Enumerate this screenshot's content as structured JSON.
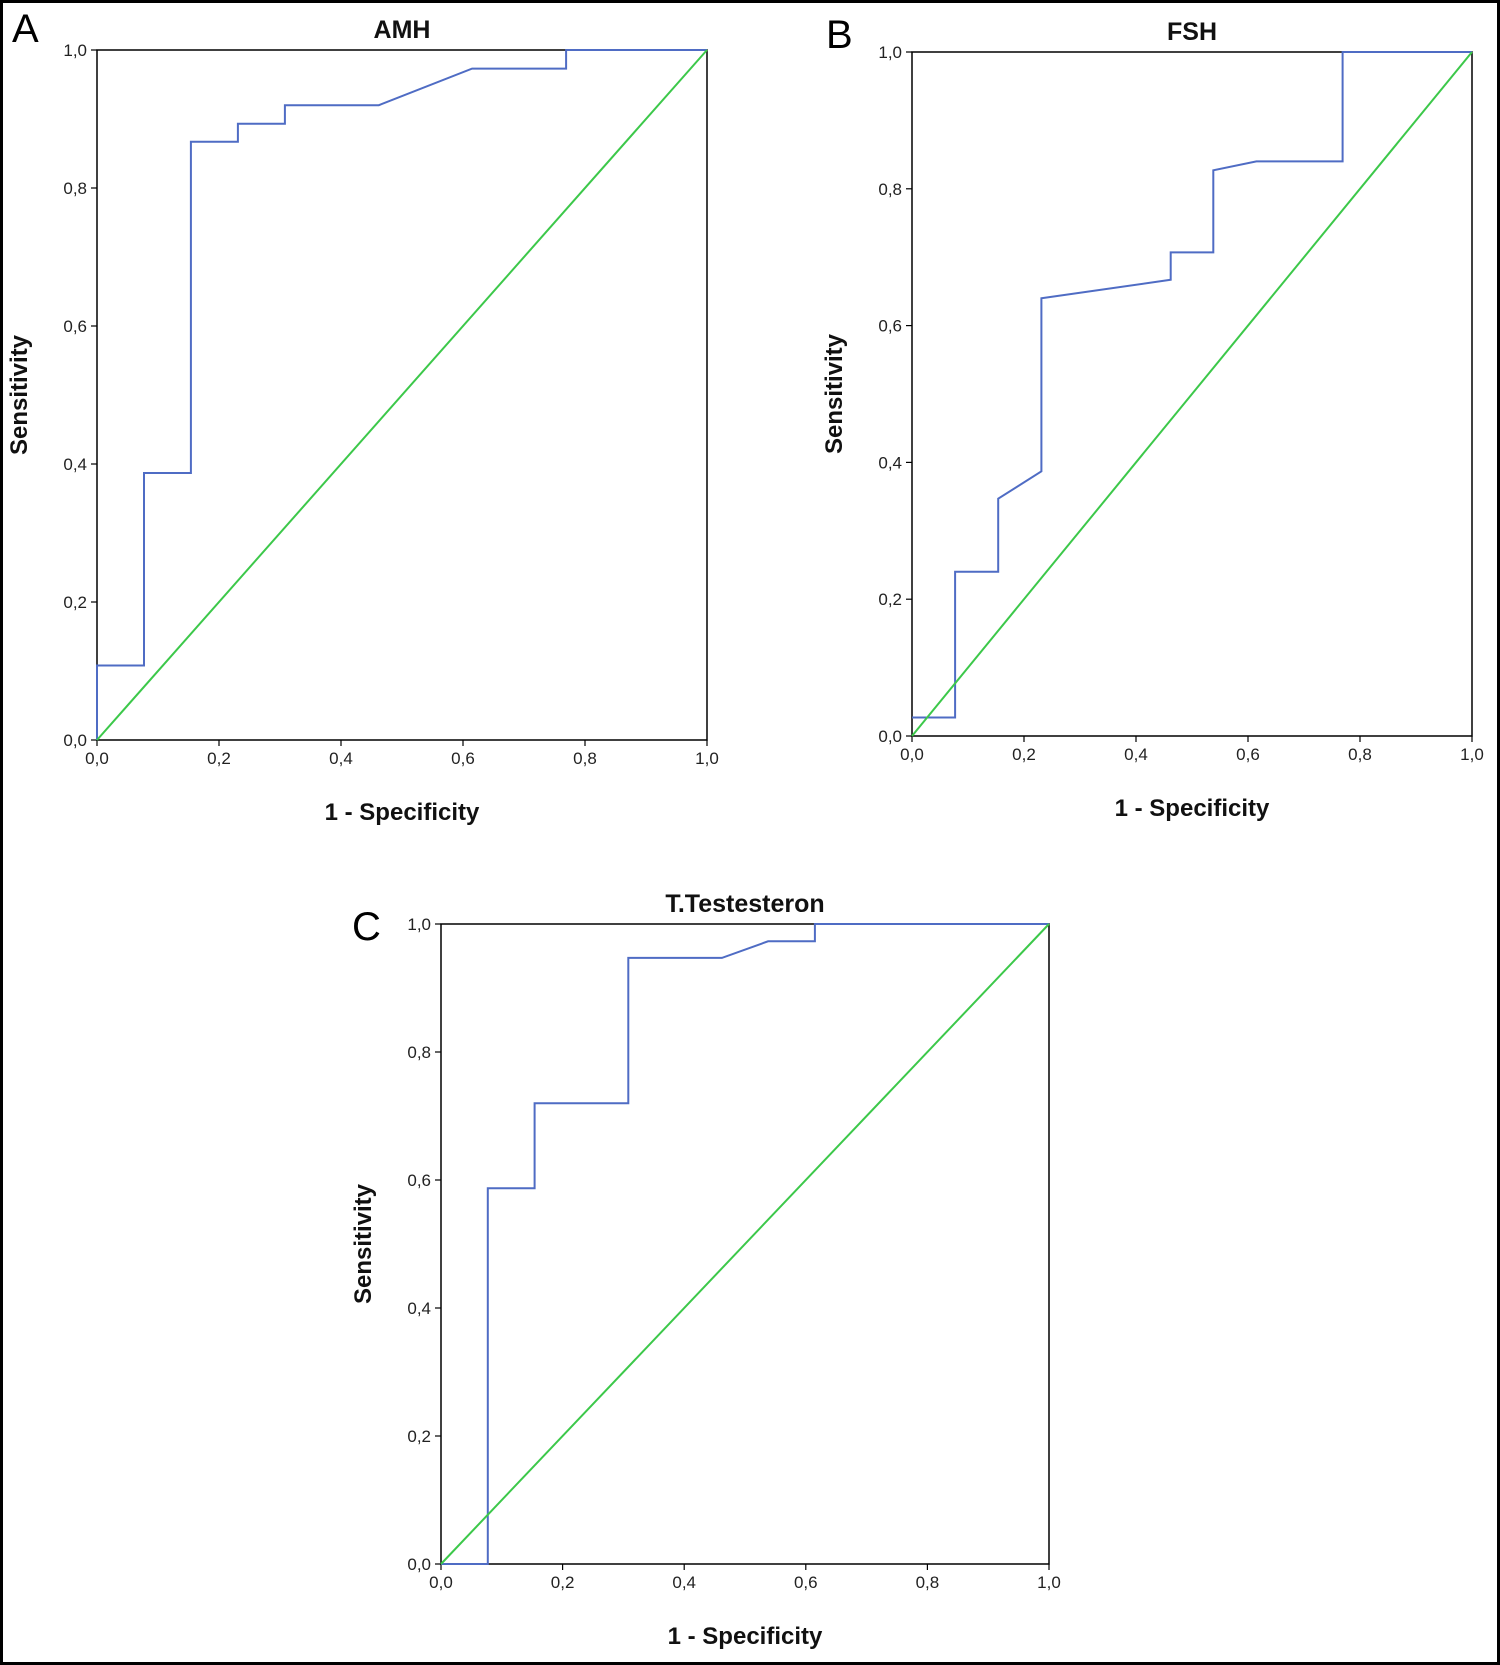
{
  "figure": {
    "panels": [
      {
        "letter": "A",
        "title": "AMH"
      },
      {
        "letter": "B",
        "title": "FSH"
      },
      {
        "letter": "C",
        "title": "T.Testesteron"
      }
    ]
  },
  "colors": {
    "roc_curve": "#4f6cc4",
    "reference_line": "#3cc84a",
    "frame": "#000000",
    "background": "#ffffff"
  },
  "chart_data": [
    {
      "type": "line",
      "title": "AMH",
      "xlabel": "1 - Specificity",
      "ylabel": "Sensitivity",
      "xlim": [
        0,
        1
      ],
      "ylim": [
        0,
        1
      ],
      "x_ticks": [
        "0,0",
        "0,2",
        "0,4",
        "0,6",
        "0,8",
        "1,0"
      ],
      "y_ticks": [
        "0,0",
        "0,2",
        "0,4",
        "0,6",
        "0,8",
        "1,0"
      ],
      "grid": false,
      "series": [
        {
          "role": "roc",
          "color": "#4f6cc4",
          "x": [
            0,
            0,
            0.077,
            0.077,
            0.154,
            0.154,
            0.231,
            0.231,
            0.308,
            0.308,
            0.462,
            0.615,
            0.769,
            0.769,
            1.0
          ],
          "y": [
            0,
            0.108,
            0.108,
            0.387,
            0.387,
            0.867,
            0.867,
            0.893,
            0.893,
            0.92,
            0.92,
            0.973,
            0.973,
            1.0,
            1.0
          ]
        },
        {
          "role": "reference",
          "color": "#3cc84a",
          "x": [
            0,
            1
          ],
          "y": [
            0,
            1
          ]
        }
      ]
    },
    {
      "type": "line",
      "title": "FSH",
      "xlabel": "1 - Specificity",
      "ylabel": "Sensitivity",
      "xlim": [
        0,
        1
      ],
      "ylim": [
        0,
        1
      ],
      "x_ticks": [
        "0,0",
        "0,2",
        "0,4",
        "0,6",
        "0,8",
        "1,0"
      ],
      "y_ticks": [
        "0,0",
        "0,2",
        "0,4",
        "0,6",
        "0,8",
        "1,0"
      ],
      "grid": false,
      "series": [
        {
          "role": "roc",
          "color": "#4f6cc4",
          "x": [
            0,
            0.077,
            0.077,
            0.154,
            0.154,
            0.231,
            0.231,
            0.462,
            0.462,
            0.538,
            0.538,
            0.615,
            0.769,
            0.769,
            1.0
          ],
          "y": [
            0.027,
            0.027,
            0.24,
            0.24,
            0.347,
            0.387,
            0.64,
            0.667,
            0.707,
            0.707,
            0.827,
            0.84,
            0.84,
            1.0,
            1.0
          ]
        },
        {
          "role": "reference",
          "color": "#3cc84a",
          "x": [
            0,
            1
          ],
          "y": [
            0,
            1
          ]
        }
      ]
    },
    {
      "type": "line",
      "title": "T.Testesteron",
      "xlabel": "1 - Specificity",
      "ylabel": "Sensitivity",
      "xlim": [
        0,
        1
      ],
      "ylim": [
        0,
        1
      ],
      "x_ticks": [
        "0,0",
        "0,2",
        "0,4",
        "0,6",
        "0,8",
        "1,0"
      ],
      "y_ticks": [
        "0,0",
        "0,2",
        "0,4",
        "0,6",
        "0,8",
        "1,0"
      ],
      "grid": false,
      "series": [
        {
          "role": "roc",
          "color": "#4f6cc4",
          "x": [
            0,
            0.077,
            0.077,
            0.154,
            0.154,
            0.308,
            0.308,
            0.462,
            0.538,
            0.615,
            0.615,
            1.0
          ],
          "y": [
            0,
            0,
            0.587,
            0.587,
            0.72,
            0.72,
            0.947,
            0.947,
            0.973,
            0.973,
            1.0,
            1.0
          ]
        },
        {
          "role": "reference",
          "color": "#3cc84a",
          "x": [
            0,
            1
          ],
          "y": [
            0,
            1
          ]
        }
      ]
    }
  ]
}
